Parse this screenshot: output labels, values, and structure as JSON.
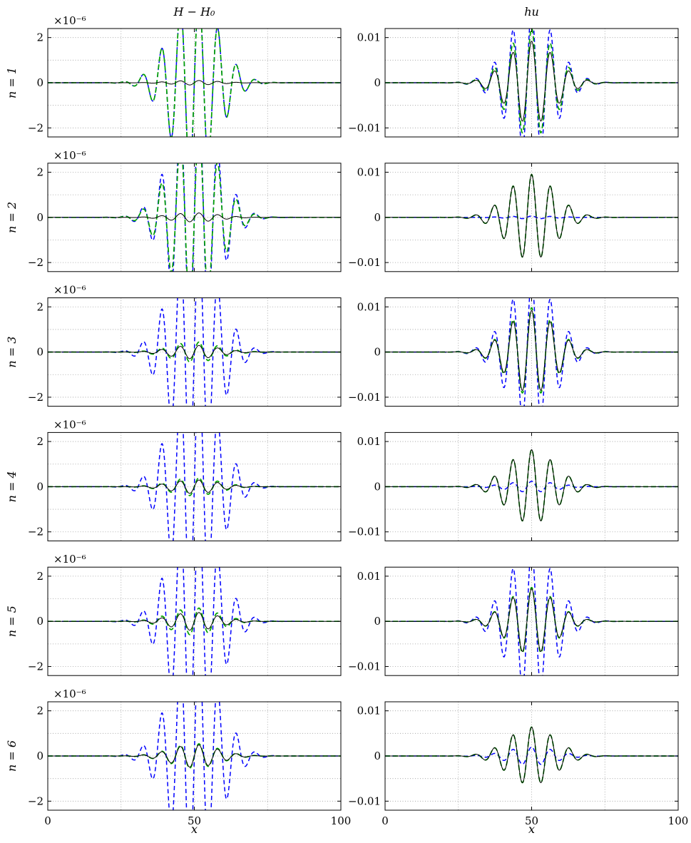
{
  "column_titles": [
    "H − H₀",
    "hu"
  ],
  "row_labels": [
    "n = 1",
    "n = 2",
    "n = 3",
    "n = 4",
    "n = 5",
    "n = 6"
  ],
  "x_axis_title": "x",
  "exponent_label": "×10⁻⁶",
  "left_y_tick_labels": [
    "2",
    "0",
    "−2"
  ],
  "right_y_tick_labels": [
    "0.01",
    "0",
    "−0.01"
  ],
  "x_tick_labels": [
    "0",
    "50",
    "100"
  ],
  "colors": {
    "solid_black": "#000000",
    "green_dashed": "#00a000",
    "blue_dashed": "#0000ff",
    "grid": "#9a9a9a"
  },
  "chart_data": {
    "type": "line",
    "layout": "grid of 6 rows x 2 columns, shared x axis",
    "x": {
      "range": [
        0,
        100
      ],
      "major_ticks": [
        0,
        50,
        100
      ],
      "grid_lines": [
        0,
        25,
        50,
        75,
        100
      ],
      "label": "x"
    },
    "grid": true,
    "legend": "none",
    "signal_shape": "Gaussian-modulated oscillation centred at x = 50",
    "signal_model": {
      "center": 50,
      "envelope_width": 8,
      "wavelength": 6.4
    },
    "columns": [
      {
        "title": "H − H₀",
        "ylim": [
          -2.4e-06,
          2.4e-06
        ],
        "y_ticks": [
          -2e-06,
          0,
          2e-06
        ],
        "y_minor_grid": [
          -1e-06,
          1e-06
        ],
        "scale_factor": "1e-6",
        "phase": "sine",
        "series_peak_amplitudes": [
          {
            "black_solid": 1e-07,
            "green_dashed": 4e-06,
            "blue_dashed": 4e-06
          },
          {
            "black_solid": 2e-07,
            "green_dashed": 4e-06,
            "blue_dashed": 5e-06
          },
          {
            "black_solid": 3e-07,
            "green_dashed": 4.5e-07,
            "blue_dashed": 5e-06
          },
          {
            "black_solid": 3e-07,
            "green_dashed": 4e-07,
            "blue_dashed": 5e-06
          },
          {
            "black_solid": 4e-07,
            "green_dashed": 6e-07,
            "blue_dashed": 5e-06
          },
          {
            "black_solid": 5e-07,
            "green_dashed": 5.5e-07,
            "blue_dashed": 5e-06
          }
        ]
      },
      {
        "title": "hu",
        "ylim": [
          -0.012,
          0.012
        ],
        "y_ticks": [
          -0.01,
          0,
          0.01
        ],
        "y_minor_grid": [
          -0.005,
          0.005
        ],
        "phase": "cosine",
        "series_peak_amplitudes": [
          {
            "black_solid": 0.0092,
            "green_dashed": 0.012,
            "blue_dashed": 0.016
          },
          {
            "black_solid": 0.0095,
            "green_dashed": 0.0095,
            "blue_dashed": 0.0003
          },
          {
            "black_solid": 0.0092,
            "green_dashed": 0.0098,
            "blue_dashed": 0.016
          },
          {
            "black_solid": 0.0082,
            "green_dashed": 0.0082,
            "blue_dashed": 0.0012
          },
          {
            "black_solid": 0.0072,
            "green_dashed": 0.0075,
            "blue_dashed": 0.016
          },
          {
            "black_solid": 0.0064,
            "green_dashed": 0.0064,
            "blue_dashed": 0.002
          }
        ]
      }
    ]
  }
}
